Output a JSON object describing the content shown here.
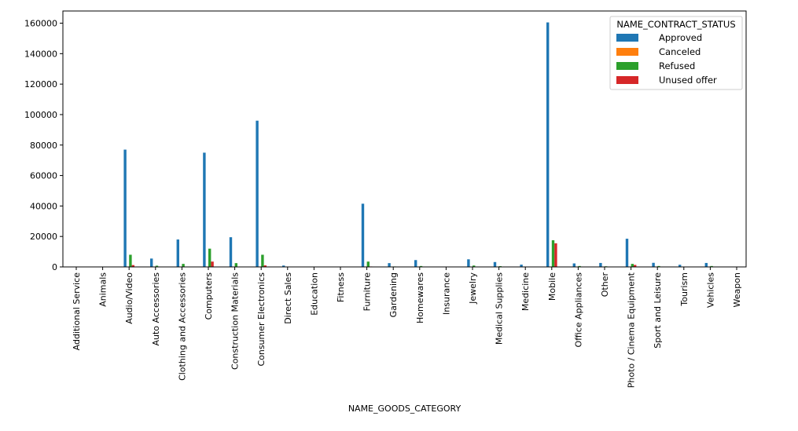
{
  "chart_data": {
    "type": "bar",
    "title": "",
    "xlabel": "NAME_GOODS_CATEGORY",
    "ylabel": "",
    "ylim": [
      0,
      168000
    ],
    "yticks": [
      0,
      20000,
      40000,
      60000,
      80000,
      100000,
      120000,
      140000,
      160000
    ],
    "grid": false,
    "legend": {
      "title": "NAME_CONTRACT_STATUS",
      "placement": "top-right"
    },
    "categories": [
      "Additional Service",
      "Animals",
      "Audio/Video",
      "Auto Accessories",
      "Clothing and Accessories",
      "Computers",
      "Construction Materials",
      "Consumer Electronics",
      "Direct Sales",
      "Education",
      "Fitness",
      "Furniture",
      "Gardening",
      "Homewares",
      "Insurance",
      "Jewelry",
      "Medical Supplies",
      "Medicine",
      "Mobile",
      "Office Appliances",
      "Other",
      "Photo / Cinema Equipment",
      "Sport and Leisure",
      "Tourism",
      "Vehicles",
      "Weapon"
    ],
    "series": [
      {
        "name": "Approved",
        "color": "#1f77b4",
        "values": [
          100,
          50,
          77000,
          5500,
          18000,
          75000,
          19500,
          96000,
          900,
          100,
          50,
          41500,
          2500,
          4500,
          0,
          5000,
          3200,
          1500,
          160500,
          2300,
          2600,
          18500,
          2700,
          1400,
          2600,
          50
        ]
      },
      {
        "name": "Canceled",
        "color": "#ff7f0e",
        "values": [
          0,
          0,
          0,
          0,
          0,
          0,
          0,
          0,
          0,
          0,
          0,
          0,
          0,
          0,
          0,
          0,
          0,
          0,
          0,
          0,
          0,
          0,
          0,
          0,
          0,
          0
        ]
      },
      {
        "name": "Refused",
        "color": "#2ca02c",
        "values": [
          0,
          0,
          8000,
          800,
          2000,
          12000,
          2500,
          8000,
          200,
          0,
          0,
          3500,
          300,
          600,
          0,
          900,
          500,
          200,
          17500,
          600,
          400,
          2000,
          600,
          200,
          600,
          0
        ]
      },
      {
        "name": "Unused offer",
        "color": "#d62728",
        "values": [
          0,
          0,
          1200,
          0,
          100,
          3500,
          100,
          1000,
          0,
          0,
          0,
          300,
          0,
          0,
          0,
          0,
          0,
          0,
          15500,
          0,
          0,
          1300,
          0,
          0,
          0,
          0
        ]
      }
    ]
  }
}
